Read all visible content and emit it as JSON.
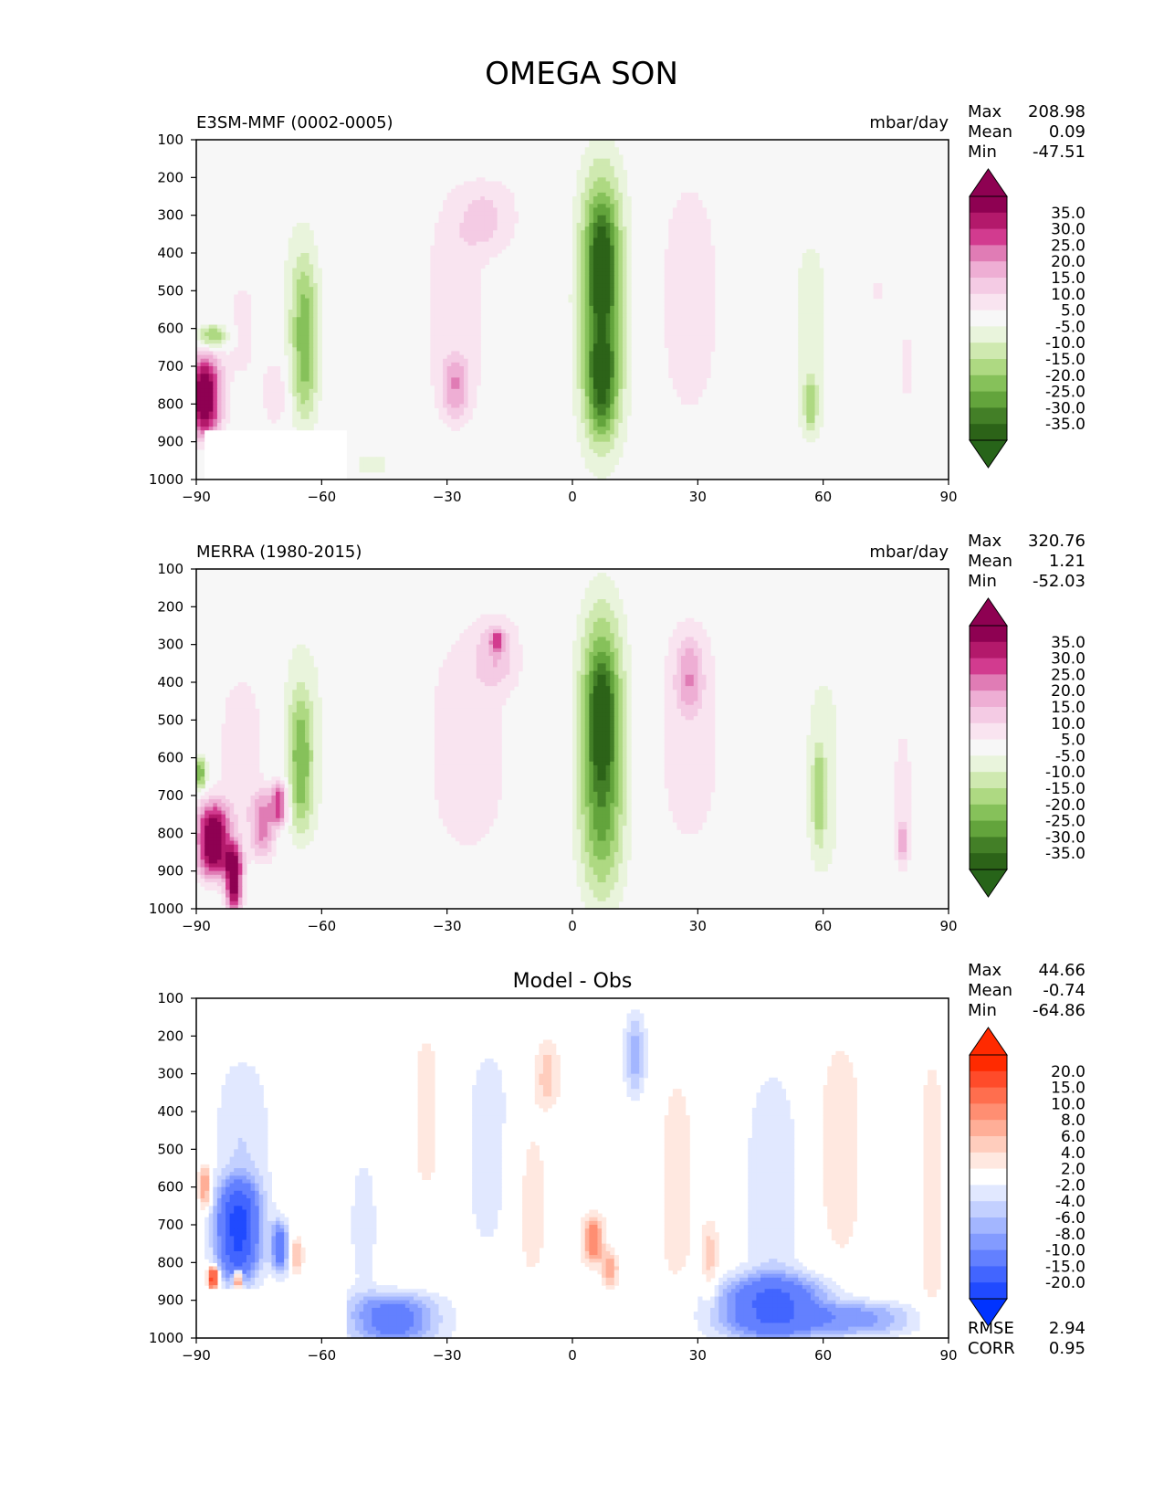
{
  "page_title": "OMEGA SON",
  "chart_data": [
    {
      "type": "heatmap",
      "id": "test",
      "left_title": "E3SM-MMF (0002-0005)",
      "center_title": "",
      "units": "mbar/day",
      "stats": {
        "max_label": "Max",
        "max": "208.98",
        "mean_label": "Mean",
        "mean": "0.09",
        "min_label": "Min",
        "min": "-47.51"
      },
      "xlim": [
        -90,
        90
      ],
      "ylim": [
        1000,
        100
      ],
      "xticks": [
        "−90",
        "−60",
        "−30",
        "0",
        "30",
        "60",
        "90"
      ],
      "xtick_values": [
        -90,
        -60,
        -30,
        0,
        30,
        60,
        90
      ],
      "yticks": [
        "100",
        "200",
        "300",
        "400",
        "500",
        "600",
        "700",
        "800",
        "900",
        "1000"
      ],
      "ytick_values": [
        100,
        200,
        300,
        400,
        500,
        600,
        700,
        800,
        900,
        1000
      ],
      "colorbar": {
        "labels": [
          "35.0",
          "30.0",
          "25.0",
          "20.0",
          "15.0",
          "10.0",
          "5.0",
          "-5.0",
          "-10.0",
          "-15.0",
          "-20.0",
          "-25.0",
          "-30.0",
          "-35.0"
        ],
        "colors": [
          "#8e0152",
          "#b3196b",
          "#d23b8f",
          "#e07cb5",
          "#eeaed4",
          "#f4cbe4",
          "#f9e4f0",
          "#f7f7f7",
          "#e9f4dc",
          "#cfe9b0",
          "#aed982",
          "#86c15a",
          "#63a43c",
          "#437f27",
          "#2c6318"
        ],
        "max_color": "#8e0152",
        "min_color": "#276419"
      },
      "features": [
        {
          "lon": -88,
          "lev": 780,
          "w": 4,
          "h": 220,
          "v": 42
        },
        {
          "lon": -86,
          "lev": 620,
          "w": 4,
          "h": 60,
          "v": -20
        },
        {
          "lon": -79,
          "lev": 600,
          "w": 4,
          "h": 300,
          "v": 7
        },
        {
          "lon": -71,
          "lev": 770,
          "w": 3,
          "h": 180,
          "v": 11
        },
        {
          "lon": -65,
          "lev": 560,
          "w": 5,
          "h": 600,
          "v": -8
        },
        {
          "lon": -64,
          "lev": 640,
          "w": 3,
          "h": 420,
          "v": -16
        },
        {
          "lon": -28,
          "lev": 560,
          "w": 9,
          "h": 660,
          "v": 8
        },
        {
          "lon": -28,
          "lev": 760,
          "w": 3,
          "h": 160,
          "v": 14
        },
        {
          "lon": -20,
          "lev": 300,
          "w": 8,
          "h": 200,
          "v": 9
        },
        {
          "lon": -48,
          "lev": 960,
          "w": 8,
          "h": 80,
          "v": -6
        },
        {
          "lon": 7,
          "lev": 540,
          "w": 5.5,
          "h": 750,
          "v": -32
        },
        {
          "lon": 7,
          "lev": 430,
          "w": 3,
          "h": 300,
          "v": -12
        },
        {
          "lon": 7,
          "lev": 750,
          "w": 3,
          "h": 250,
          "v": -14
        },
        {
          "lon": 28,
          "lev": 520,
          "w": 7,
          "h": 640,
          "v": 10
        },
        {
          "lon": 57,
          "lev": 630,
          "w": 6,
          "h": 700,
          "v": -7
        },
        {
          "lon": 57,
          "lev": 800,
          "w": 1.5,
          "h": 140,
          "v": -14
        },
        {
          "lon": 80,
          "lev": 700,
          "w": 2,
          "h": 280,
          "v": 6
        },
        {
          "lon": 73,
          "lev": 500,
          "w": 1.5,
          "h": 120,
          "v": 6
        }
      ]
    },
    {
      "type": "heatmap",
      "id": "reference",
      "left_title": "MERRA (1980-2015)",
      "center_title": "",
      "units": "mbar/day",
      "stats": {
        "max_label": "Max",
        "max": "320.76",
        "mean_label": "Mean",
        "mean": "1.21",
        "min_label": "Min",
        "min": "-52.03"
      },
      "xlim": [
        -90,
        90
      ],
      "ylim": [
        1000,
        100
      ],
      "xticks": [
        "−90",
        "−60",
        "−30",
        "0",
        "30",
        "60",
        "90"
      ],
      "xtick_values": [
        -90,
        -60,
        -30,
        0,
        30,
        60,
        90
      ],
      "yticks": [
        "100",
        "200",
        "300",
        "400",
        "500",
        "600",
        "700",
        "800",
        "900",
        "1000"
      ],
      "ytick_values": [
        100,
        200,
        300,
        400,
        500,
        600,
        700,
        800,
        900,
        1000
      ],
      "colorbar": {
        "labels": [
          "35.0",
          "30.0",
          "25.0",
          "20.0",
          "15.0",
          "10.0",
          "5.0",
          "-5.0",
          "-10.0",
          "-15.0",
          "-20.0",
          "-25.0",
          "-30.0",
          "-35.0"
        ],
        "colors": [
          "#8e0152",
          "#b3196b",
          "#d23b8f",
          "#e07cb5",
          "#eeaed4",
          "#f4cbe4",
          "#f9e4f0",
          "#f7f7f7",
          "#e9f4dc",
          "#cfe9b0",
          "#aed982",
          "#86c15a",
          "#63a43c",
          "#437f27",
          "#2c6318"
        ],
        "max_color": "#8e0152",
        "min_color": "#276419"
      },
      "features": [
        {
          "lon": -86,
          "lev": 820,
          "w": 4,
          "h": 200,
          "v": 42
        },
        {
          "lon": -81,
          "lev": 920,
          "w": 2,
          "h": 180,
          "v": 40
        },
        {
          "lon": -89,
          "lev": 640,
          "w": 1.5,
          "h": 90,
          "v": -25
        },
        {
          "lon": -74,
          "lev": 780,
          "w": 3,
          "h": 180,
          "v": 20
        },
        {
          "lon": -79,
          "lev": 580,
          "w": 8,
          "h": 520,
          "v": 7
        },
        {
          "lon": -70,
          "lev": 720,
          "w": 2,
          "h": 120,
          "v": 28
        },
        {
          "lon": -65,
          "lev": 530,
          "w": 6,
          "h": 600,
          "v": -8
        },
        {
          "lon": -65,
          "lev": 620,
          "w": 3,
          "h": 360,
          "v": -17
        },
        {
          "lon": -25,
          "lev": 560,
          "w": 12,
          "h": 700,
          "v": 8
        },
        {
          "lon": -18,
          "lev": 320,
          "w": 5,
          "h": 180,
          "v": 11
        },
        {
          "lon": -18,
          "lev": 290,
          "w": 1.5,
          "h": 50,
          "v": 17
        },
        {
          "lon": 7,
          "lev": 580,
          "w": 5.5,
          "h": 760,
          "v": -32
        },
        {
          "lon": 7,
          "lev": 500,
          "w": 3,
          "h": 300,
          "v": -12
        },
        {
          "lon": 28,
          "lev": 520,
          "w": 8,
          "h": 680,
          "v": 9
        },
        {
          "lon": 28,
          "lev": 380,
          "w": 3,
          "h": 180,
          "v": 12
        },
        {
          "lon": 60,
          "lev": 650,
          "w": 6,
          "h": 700,
          "v": -7
        },
        {
          "lon": 59,
          "lev": 700,
          "w": 1.5,
          "h": 260,
          "v": -14
        },
        {
          "lon": 79,
          "lev": 720,
          "w": 3,
          "h": 500,
          "v": 7
        },
        {
          "lon": 79,
          "lev": 820,
          "w": 1,
          "h": 100,
          "v": 14
        }
      ]
    },
    {
      "type": "heatmap",
      "id": "diff",
      "left_title": "",
      "center_title": "Model - Obs",
      "units": "",
      "stats": {
        "max_label": "Max",
        "max": "44.66",
        "mean_label": "Mean",
        "mean": "-0.74",
        "min_label": "Min",
        "min": "-64.86"
      },
      "extra_stats": {
        "rmse_label": "RMSE",
        "rmse": "2.94",
        "corr_label": "CORR",
        "corr": "0.95"
      },
      "xlim": [
        -90,
        90
      ],
      "ylim": [
        1000,
        100
      ],
      "xticks": [
        "−90",
        "−60",
        "−30",
        "0",
        "30",
        "60",
        "90"
      ],
      "xtick_values": [
        -90,
        -60,
        -30,
        0,
        30,
        60,
        90
      ],
      "yticks": [
        "100",
        "200",
        "300",
        "400",
        "500",
        "600",
        "700",
        "800",
        "900",
        "1000"
      ],
      "ytick_values": [
        100,
        200,
        300,
        400,
        500,
        600,
        700,
        800,
        900,
        1000
      ],
      "colorbar": {
        "labels": [
          "20.0",
          "15.0",
          "10.0",
          "8.0",
          "6.0",
          "4.0",
          "2.0",
          "-2.0",
          "-4.0",
          "-6.0",
          "-8.0",
          "-10.0",
          "-15.0",
          "-20.0"
        ],
        "colors": [
          "#ff2a00",
          "#ff4b2a",
          "#ff6e4e",
          "#ff8e72",
          "#ffae97",
          "#ffcdbd",
          "#ffe8e0",
          "#ffffff",
          "#e1e8ff",
          "#c3d0ff",
          "#a3b6ff",
          "#839bff",
          "#6380ff",
          "#4265ff",
          "#204aff"
        ],
        "max_color": "#ff2a00",
        "min_color": "#0033ff"
      },
      "features": [
        {
          "lon": -80,
          "lev": 720,
          "w": 5,
          "h": 260,
          "v": -20
        },
        {
          "lon": -79,
          "lev": 500,
          "w": 7,
          "h": 520,
          "v": -4
        },
        {
          "lon": -86,
          "lev": 840,
          "w": 1.2,
          "h": 60,
          "v": 20
        },
        {
          "lon": -80,
          "lev": 845,
          "w": 1,
          "h": 50,
          "v": 18
        },
        {
          "lon": -88,
          "lev": 600,
          "w": 1.5,
          "h": 120,
          "v": 9
        },
        {
          "lon": -70,
          "lev": 760,
          "w": 2,
          "h": 140,
          "v": -12
        },
        {
          "lon": -66,
          "lev": 780,
          "w": 1.5,
          "h": 100,
          "v": 6
        },
        {
          "lon": -43,
          "lev": 950,
          "w": 11,
          "h": 140,
          "v": -12
        },
        {
          "lon": -50,
          "lev": 700,
          "w": 4,
          "h": 400,
          "v": -3
        },
        {
          "lon": -35,
          "lev": 400,
          "w": 3,
          "h": 420,
          "v": 4
        },
        {
          "lon": -20,
          "lev": 500,
          "w": 7,
          "h": 640,
          "v": -3
        },
        {
          "lon": -10,
          "lev": 640,
          "w": 5,
          "h": 500,
          "v": 3
        },
        {
          "lon": -6,
          "lev": 300,
          "w": 3,
          "h": 180,
          "v": 5
        },
        {
          "lon": 5,
          "lev": 740,
          "w": 2.5,
          "h": 130,
          "v": 10
        },
        {
          "lon": 9,
          "lev": 820,
          "w": 2,
          "h": 100,
          "v": 7
        },
        {
          "lon": 15,
          "lev": 250,
          "w": 2.5,
          "h": 220,
          "v": -7
        },
        {
          "lon": 25,
          "lev": 600,
          "w": 5,
          "h": 700,
          "v": 3
        },
        {
          "lon": 33,
          "lev": 800,
          "w": 2,
          "h": 220,
          "v": 5
        },
        {
          "lon": 48,
          "lev": 920,
          "w": 14,
          "h": 170,
          "v": -15
        },
        {
          "lon": 48,
          "lev": 620,
          "w": 7,
          "h": 700,
          "v": -4
        },
        {
          "lon": 64,
          "lev": 500,
          "w": 7,
          "h": 700,
          "v": 3
        },
        {
          "lon": 70,
          "lev": 950,
          "w": 12,
          "h": 90,
          "v": -8
        },
        {
          "lon": 86,
          "lev": 600,
          "w": 3,
          "h": 700,
          "v": 4
        }
      ]
    }
  ]
}
